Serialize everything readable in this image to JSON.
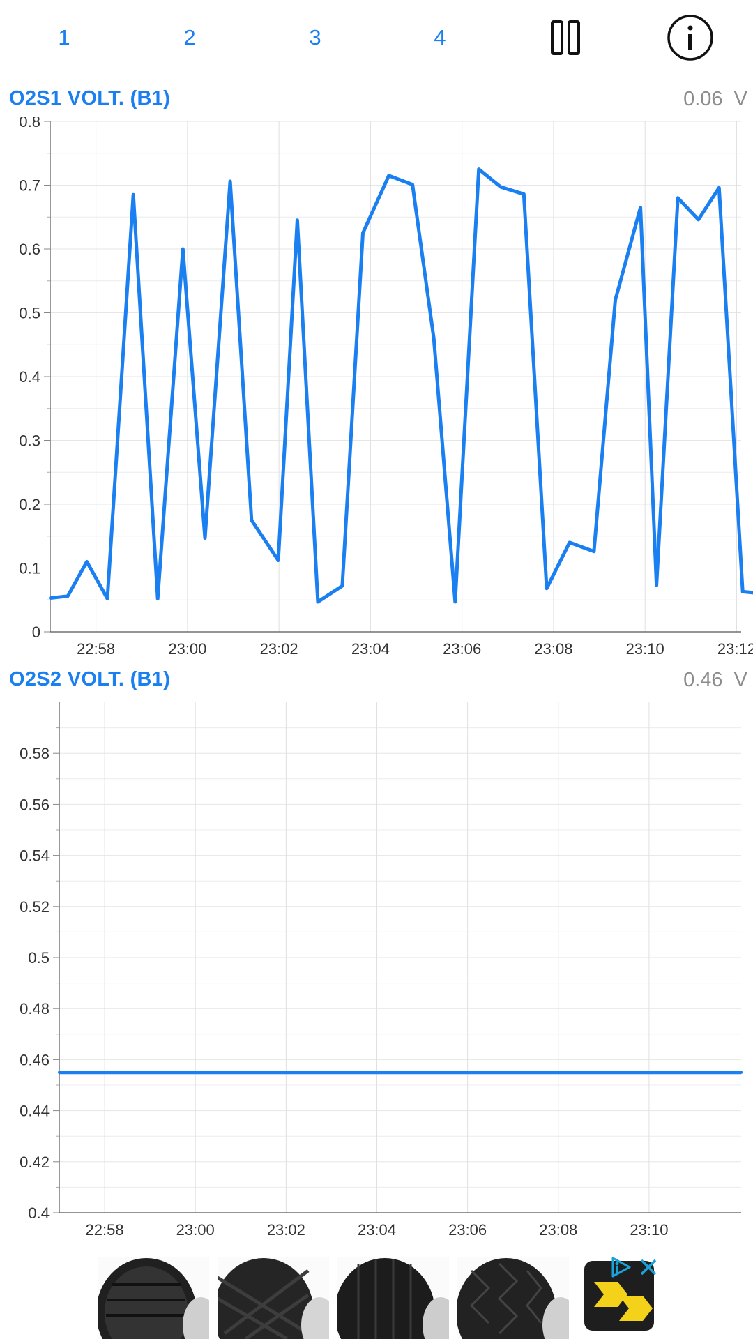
{
  "tabs": [
    {
      "label": "1"
    },
    {
      "label": "2"
    },
    {
      "label": "3"
    },
    {
      "label": "4"
    }
  ],
  "toolbar": {
    "pause_icon": "pause-icon",
    "info_icon": "info-icon",
    "accent_color": "#1a7ff0"
  },
  "charts": [
    {
      "title": "O2S1 VOLT. (B1)",
      "current_value": "0.06  V"
    },
    {
      "title": "O2S2 VOLT. (B1)",
      "current_value": "0.46  V"
    }
  ],
  "chart_data": [
    {
      "type": "line",
      "title": "O2S1 VOLT. (B1)",
      "x_unit": "minutes since 22:57",
      "x_ticks": [
        "22:58",
        "23:00",
        "23:02",
        "23:04",
        "23:06",
        "23:08",
        "23:10",
        "23:12"
      ],
      "y_ticks": [
        "0",
        "0.1",
        "0.2",
        "0.3",
        "0.4",
        "0.5",
        "0.6",
        "0.7",
        "0.8"
      ],
      "ylim": [
        0,
        0.8
      ],
      "grid": true,
      "color": "#1a7ff0",
      "x": [
        "22:57:00",
        "22:57:23",
        "22:57:48",
        "22:58:15",
        "22:58:49",
        "22:59:21",
        "22:59:54",
        "23:00:23",
        "23:00:56",
        "23:01:24",
        "23:01:59",
        "23:02:24",
        "23:02:51",
        "23:03:23",
        "23:03:50",
        "23:04:24",
        "23:04:55",
        "23:05:23",
        "23:05:51",
        "23:06:22",
        "23:06:51",
        "23:07:21",
        "23:07:51",
        "23:08:21",
        "23:08:53",
        "23:09:21",
        "23:09:54",
        "23:10:15",
        "23:10:43",
        "23:11:10",
        "23:11:37",
        "23:12:08",
        "23:12:34"
      ],
      "values": [
        0.053,
        0.056,
        0.11,
        0.052,
        0.685,
        0.052,
        0.6,
        0.147,
        0.706,
        0.175,
        0.112,
        0.645,
        0.047,
        0.072,
        0.625,
        0.715,
        0.701,
        0.46,
        0.047,
        0.725,
        0.697,
        0.686,
        0.068,
        0.14,
        0.126,
        0.52,
        0.665,
        0.073,
        0.68,
        0.646,
        0.696,
        0.063,
        0.06
      ]
    },
    {
      "type": "line",
      "title": "O2S2 VOLT. (B1)",
      "x_unit": "minutes since 22:57",
      "x_ticks": [
        "22:58",
        "23:00",
        "23:02",
        "23:04",
        "23:06",
        "23:08",
        "23:10"
      ],
      "y_ticks": [
        "0.4",
        "0.42",
        "0.44",
        "0.46",
        "0.48",
        "0.5",
        "0.52",
        "0.54",
        "0.56",
        "0.58"
      ],
      "ylim": [
        0.4,
        0.6
      ],
      "grid": true,
      "color": "#1a7ff0",
      "x": [
        "22:57:00",
        "23:12:02"
      ],
      "values": [
        0.455,
        0.455
      ]
    }
  ],
  "ad": {
    "products": [
      {
        "name": "tire-ad-1"
      },
      {
        "name": "tire-ad-2"
      },
      {
        "name": "tire-ad-3"
      },
      {
        "name": "tire-ad-4"
      }
    ],
    "logo_colors": {
      "background": "#1e1e1e",
      "mark": "#f5d21a"
    },
    "choices_icon": "ad-choices-icon",
    "close_icon": "close-icon"
  }
}
